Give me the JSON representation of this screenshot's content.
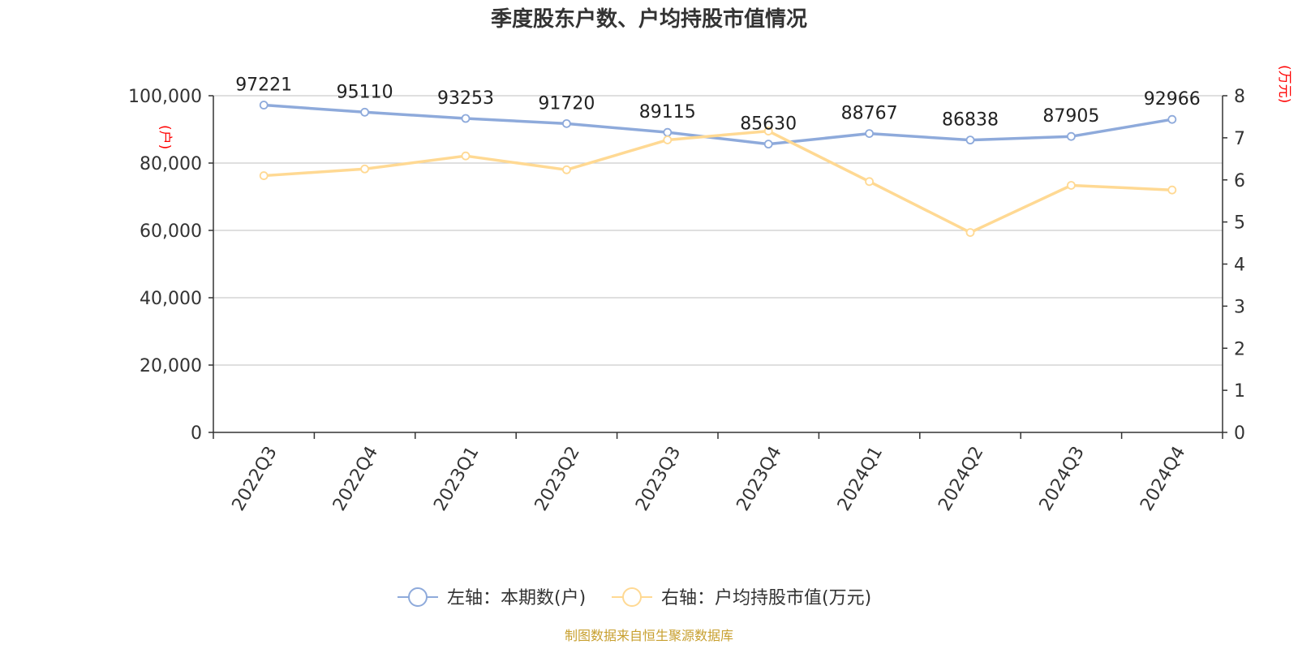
{
  "title": "季度股东户数、户均持股市值情况",
  "source": "制图数据来自恒生聚源数据库",
  "colors": {
    "left_series": "#8eaadb",
    "right_series": "#ffd993",
    "unit_label": "#ff0000",
    "source": "#c8a030",
    "axis": "#333333",
    "grid": "#cccccc"
  },
  "legend": {
    "left": "左轴：本期数(户)",
    "right": "右轴：户均持股市值(万元)"
  },
  "chart_data": {
    "type": "line",
    "title": "季度股东户数、户均持股市值情况",
    "categories": [
      "2022Q3",
      "2022Q4",
      "2023Q1",
      "2023Q2",
      "2023Q3",
      "2023Q4",
      "2024Q1",
      "2024Q2",
      "2024Q3",
      "2024Q4"
    ],
    "y_left": {
      "unit": "(户)",
      "ylim": [
        0,
        100000
      ],
      "ticks": [
        "0",
        "20,000",
        "40,000",
        "60,000",
        "80,000",
        "100,000"
      ],
      "tick_values": [
        0,
        20000,
        40000,
        60000,
        80000,
        100000
      ]
    },
    "y_right": {
      "unit": "(万元)",
      "ylim": [
        0,
        8
      ],
      "ticks": [
        "0",
        "1",
        "2",
        "3",
        "4",
        "5",
        "6",
        "7",
        "8"
      ],
      "tick_values": [
        0,
        1,
        2,
        3,
        4,
        5,
        6,
        7,
        8
      ]
    },
    "series": [
      {
        "name": "左轴：本期数(户)",
        "axis": "left",
        "values": [
          97221,
          95110,
          93253,
          91720,
          89115,
          85630,
          88767,
          86838,
          87905,
          92966
        ],
        "labels": [
          "97221",
          "95110",
          "93253",
          "91720",
          "89115",
          "85630",
          "88767",
          "86838",
          "87905",
          "92966"
        ]
      },
      {
        "name": "右轴：户均持股市值(万元)",
        "axis": "right",
        "values": [
          6.1,
          6.26,
          6.57,
          6.24,
          6.95,
          7.16,
          5.96,
          4.75,
          5.87,
          5.76
        ]
      }
    ],
    "grid": true,
    "legend_position": "bottom-center"
  }
}
